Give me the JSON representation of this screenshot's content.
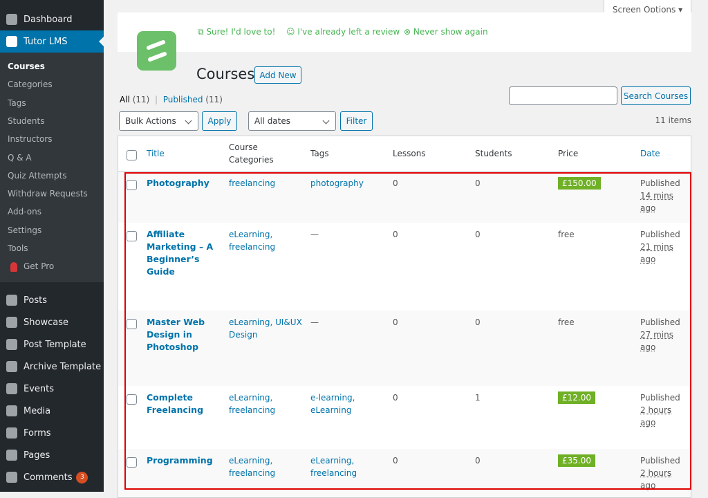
{
  "sidebar": {
    "top": [
      "Dashboard",
      "Tutor LMS"
    ],
    "submenu": [
      "Courses",
      "Categories",
      "Tags",
      "Students",
      "Instructors",
      "Q & A",
      "Quiz Attempts",
      "Withdraw Requests",
      "Add-ons",
      "Settings",
      "Tools",
      "Get Pro"
    ],
    "menu": [
      "Posts",
      "Showcase",
      "Post Template",
      "Archive Template",
      "Events",
      "Media",
      "Forms",
      "Pages",
      "Comments"
    ],
    "comments_badge": "3"
  },
  "screen_options": "Screen Options",
  "notice": {
    "links": [
      "Sure! I'd love to!",
      "I've already left a review",
      "Never show again"
    ]
  },
  "page": {
    "title": "Courses",
    "add_new": "Add New"
  },
  "filters": {
    "all": "All",
    "all_count": "(11)",
    "published": "Published",
    "published_count": "(11)",
    "search_button": "Search Courses",
    "bulk_actions": "Bulk Actions",
    "apply": "Apply",
    "dates": "All dates",
    "filter": "Filter",
    "items": "11 items"
  },
  "table": {
    "columns": [
      "Title",
      "Course Categories",
      "Tags",
      "Lessons",
      "Students",
      "Price",
      "Date"
    ],
    "rows": [
      {
        "title": "Photography",
        "categories": "freelancing",
        "tags": "photography",
        "lessons": 0,
        "students": 0,
        "price": "£150.00",
        "status": "Published",
        "time": "14 mins ago"
      },
      {
        "title": "Affiliate Marketing – A Beginner’s Guide",
        "categories": "eLearning, freelancing",
        "tags": "—",
        "lessons": 0,
        "students": 0,
        "price": "free",
        "status": "Published",
        "time": "21 mins ago"
      },
      {
        "title": "Master Web Design in Photoshop",
        "categories": "eLearning, UI&UX Design",
        "tags": "—",
        "lessons": 0,
        "students": 0,
        "price": "free",
        "status": "Published",
        "time": "27 mins ago"
      },
      {
        "title": "Complete Freelancing",
        "categories": "eLearning, freelancing",
        "tags": "e-learning, eLearning",
        "lessons": 0,
        "students": 1,
        "price": "£12.00",
        "status": "Published",
        "time": "2 hours ago"
      },
      {
        "title": "Programming",
        "categories": "eLearning, freelancing",
        "tags": "eLearning, freelancing",
        "lessons": 0,
        "students": 0,
        "price": "£35.00",
        "status": "Published",
        "time": "2 hours ago"
      }
    ]
  }
}
